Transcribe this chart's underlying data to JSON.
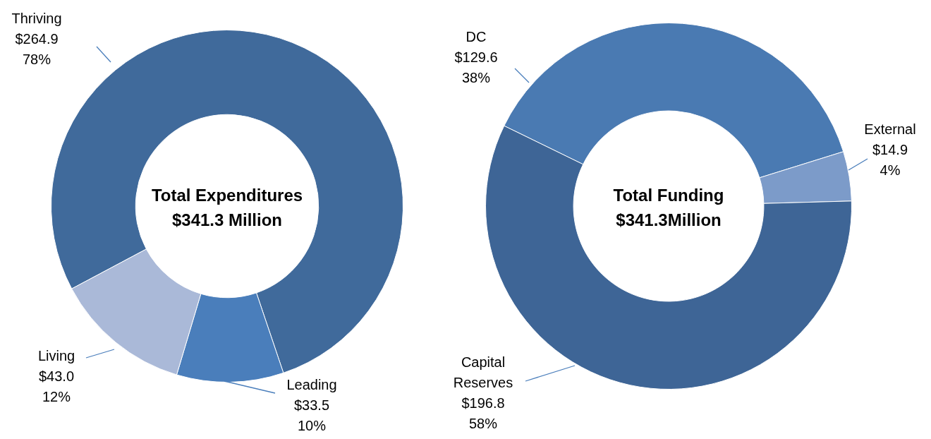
{
  "chart_data": [
    {
      "type": "donut",
      "title": "Total Expenditures",
      "subtitle": "$341.3 Million",
      "categories": [
        "Thriving",
        "Leading",
        "Living"
      ],
      "values": [
        264.9,
        33.5,
        43.0
      ],
      "colors": [
        "#406a9b",
        "#4a7ebb",
        "#aab9d8"
      ],
      "value_labels": [
        "$264.9\n78%",
        "$33.5\n10%",
        "$43.0\n12%"
      ]
    },
    {
      "type": "donut",
      "title": "Total Funding",
      "subtitle": "$341.3Million",
      "categories": [
        "DC",
        "External",
        "Capital Reserves"
      ],
      "values": [
        129.6,
        14.9,
        196.8
      ],
      "colors": [
        "#4a7ab2",
        "#7c9bc9",
        "#3e6596"
      ],
      "value_labels": [
        "$129.6\n38%",
        "$14.9\n4%",
        "$196.8\n58%"
      ]
    }
  ]
}
